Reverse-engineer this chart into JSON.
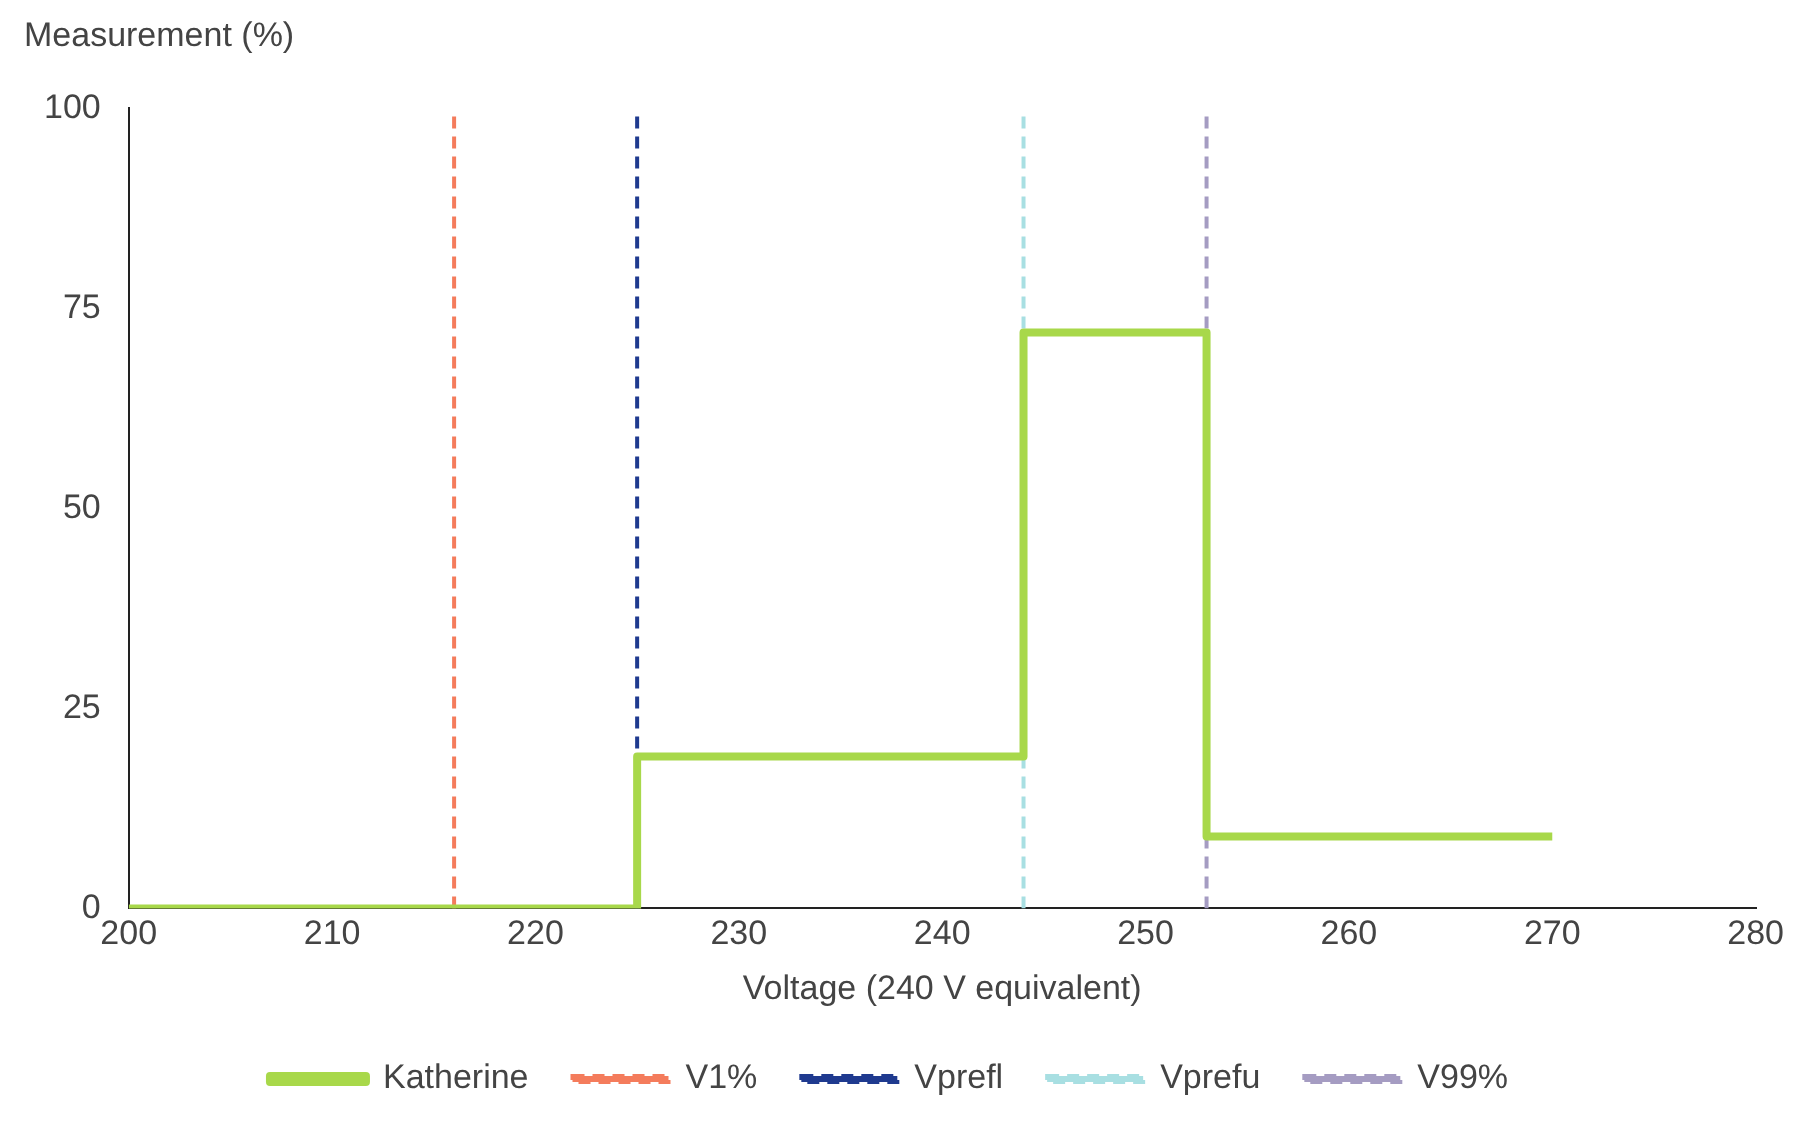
{
  "chart_data": {
    "type": "step",
    "xlabel": "Voltage (240 V equivalent)",
    "ylabel": "Measurement (%)",
    "x": [
      200,
      225,
      244,
      253,
      270
    ],
    "series": [
      {
        "name": "Katherine",
        "color": "#a8d84a",
        "values": [
          0,
          19,
          72,
          9,
          9
        ]
      }
    ],
    "ref_lines": [
      {
        "axis": "x",
        "value": 216,
        "label": "V1%",
        "color": "#f47c5c",
        "line_style": "dashed"
      },
      {
        "axis": "x",
        "value": 225,
        "label": "Vprefl",
        "color": "#1f3a8f",
        "line_style": "dashed"
      },
      {
        "axis": "x",
        "value": 244,
        "label": "Vprefu",
        "color": "#a8dfe2",
        "line_style": "dashed"
      },
      {
        "axis": "x",
        "value": 253,
        "label": "V99%",
        "color": "#a59cc2",
        "line_style": "dashed"
      }
    ],
    "xlim": [
      200,
      280
    ],
    "xticks": [
      200,
      210,
      220,
      230,
      240,
      250,
      260,
      270,
      280
    ],
    "ylim": [
      0,
      100
    ],
    "yticks": [
      0,
      25,
      50,
      75,
      100
    ],
    "grid": false,
    "legend": "bottom",
    "marker": "none",
    "line_style": "solid"
  }
}
